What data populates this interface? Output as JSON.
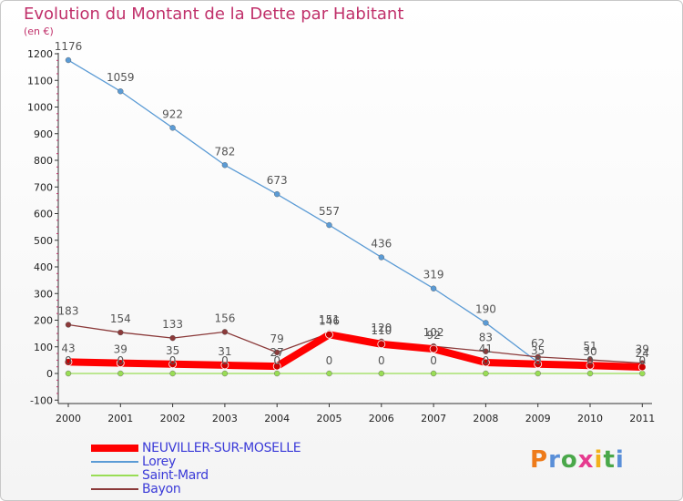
{
  "chart_data": {
    "type": "line",
    "title": "Evolution du Montant de la Dette par Habitant",
    "subtitle": "(en €)",
    "categories": [
      "2000",
      "2001",
      "2002",
      "2003",
      "2004",
      "2005",
      "2006",
      "2007",
      "2008",
      "2009",
      "2010",
      "2011"
    ],
    "ylim": [
      -100,
      1200
    ],
    "yticks": [
      -100,
      0,
      100,
      200,
      300,
      400,
      500,
      600,
      700,
      800,
      900,
      1000,
      1100,
      1200
    ],
    "grid": false,
    "legend_position": "bottom-left",
    "series": [
      {
        "name": "NEUVILLER-SUR-MOSELLE",
        "color": "#ff0000",
        "emphasis": true,
        "values": [
          43,
          39,
          35,
          31,
          27,
          146,
          110,
          92,
          41,
          35,
          30,
          24
        ],
        "labels": [
          "43",
          "39",
          "35",
          "31",
          "27",
          "146",
          "110",
          "92",
          "41",
          "35",
          "30",
          "24"
        ]
      },
      {
        "name": "Lorey",
        "color": "#5b9bd5",
        "emphasis": false,
        "values": [
          1176,
          1059,
          922,
          782,
          673,
          557,
          436,
          319,
          190,
          42,
          36,
          30
        ],
        "labels": [
          "1176",
          "1059",
          "922",
          "782",
          "673",
          "557",
          "436",
          "319",
          "190",
          "",
          "",
          ""
        ]
      },
      {
        "name": "Saint-Mard",
        "color": "#99dd55",
        "emphasis": false,
        "values": [
          0,
          0,
          0,
          0,
          0,
          0,
          0,
          0,
          0,
          0,
          0,
          0
        ],
        "labels": [
          "0",
          "0",
          "0",
          "0",
          "0",
          "0",
          "0",
          "0",
          "0",
          "0",
          "0",
          "0"
        ]
      },
      {
        "name": "Bayon",
        "color": "#8b3a3a",
        "emphasis": false,
        "values": [
          183,
          154,
          133,
          156,
          79,
          151,
          120,
          102,
          83,
          62,
          51,
          39
        ],
        "labels": [
          "183",
          "154",
          "133",
          "156",
          "79",
          "151",
          "120",
          "102",
          "83",
          "62",
          "51",
          "39"
        ]
      }
    ]
  },
  "logo": {
    "text": "Proxiti",
    "colors": [
      "#ee7b1a",
      "#5a8fd8",
      "#4aa84a",
      "#e63b8f",
      "#f2b01c",
      "#4aa84a",
      "#5a8fd8"
    ]
  }
}
